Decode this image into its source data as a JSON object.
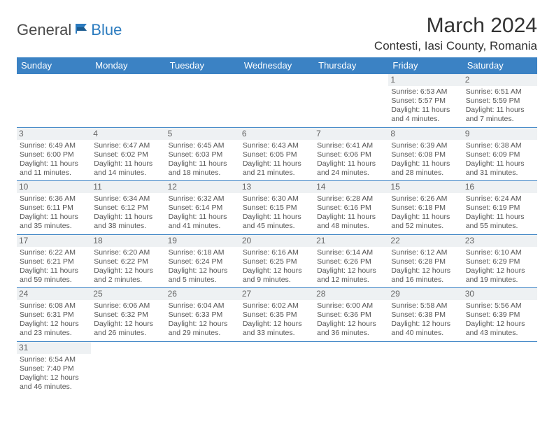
{
  "brand": {
    "part1": "General",
    "part2": "Blue"
  },
  "title": "March 2024",
  "location": "Contesti, Iasi County, Romania",
  "colors": {
    "header_bg": "#3b82c4",
    "header_text": "#ffffff",
    "border": "#3b82c4",
    "daynum_bg": "#eef1f3",
    "body_text": "#555555",
    "brand_blue": "#2b7bbf",
    "brand_gray": "#4a4a4a"
  },
  "typography": {
    "title_fontsize": 30,
    "location_fontsize": 17,
    "header_fontsize": 13,
    "cell_fontsize": 10.5
  },
  "weekdays": [
    "Sunday",
    "Monday",
    "Tuesday",
    "Wednesday",
    "Thursday",
    "Friday",
    "Saturday"
  ],
  "weeks": [
    [
      null,
      null,
      null,
      null,
      null,
      {
        "n": "1",
        "sr": "Sunrise: 6:53 AM",
        "ss": "Sunset: 5:57 PM",
        "dl1": "Daylight: 11 hours",
        "dl2": "and 4 minutes."
      },
      {
        "n": "2",
        "sr": "Sunrise: 6:51 AM",
        "ss": "Sunset: 5:59 PM",
        "dl1": "Daylight: 11 hours",
        "dl2": "and 7 minutes."
      }
    ],
    [
      {
        "n": "3",
        "sr": "Sunrise: 6:49 AM",
        "ss": "Sunset: 6:00 PM",
        "dl1": "Daylight: 11 hours",
        "dl2": "and 11 minutes."
      },
      {
        "n": "4",
        "sr": "Sunrise: 6:47 AM",
        "ss": "Sunset: 6:02 PM",
        "dl1": "Daylight: 11 hours",
        "dl2": "and 14 minutes."
      },
      {
        "n": "5",
        "sr": "Sunrise: 6:45 AM",
        "ss": "Sunset: 6:03 PM",
        "dl1": "Daylight: 11 hours",
        "dl2": "and 18 minutes."
      },
      {
        "n": "6",
        "sr": "Sunrise: 6:43 AM",
        "ss": "Sunset: 6:05 PM",
        "dl1": "Daylight: 11 hours",
        "dl2": "and 21 minutes."
      },
      {
        "n": "7",
        "sr": "Sunrise: 6:41 AM",
        "ss": "Sunset: 6:06 PM",
        "dl1": "Daylight: 11 hours",
        "dl2": "and 24 minutes."
      },
      {
        "n": "8",
        "sr": "Sunrise: 6:39 AM",
        "ss": "Sunset: 6:08 PM",
        "dl1": "Daylight: 11 hours",
        "dl2": "and 28 minutes."
      },
      {
        "n": "9",
        "sr": "Sunrise: 6:38 AM",
        "ss": "Sunset: 6:09 PM",
        "dl1": "Daylight: 11 hours",
        "dl2": "and 31 minutes."
      }
    ],
    [
      {
        "n": "10",
        "sr": "Sunrise: 6:36 AM",
        "ss": "Sunset: 6:11 PM",
        "dl1": "Daylight: 11 hours",
        "dl2": "and 35 minutes."
      },
      {
        "n": "11",
        "sr": "Sunrise: 6:34 AM",
        "ss": "Sunset: 6:12 PM",
        "dl1": "Daylight: 11 hours",
        "dl2": "and 38 minutes."
      },
      {
        "n": "12",
        "sr": "Sunrise: 6:32 AM",
        "ss": "Sunset: 6:14 PM",
        "dl1": "Daylight: 11 hours",
        "dl2": "and 41 minutes."
      },
      {
        "n": "13",
        "sr": "Sunrise: 6:30 AM",
        "ss": "Sunset: 6:15 PM",
        "dl1": "Daylight: 11 hours",
        "dl2": "and 45 minutes."
      },
      {
        "n": "14",
        "sr": "Sunrise: 6:28 AM",
        "ss": "Sunset: 6:16 PM",
        "dl1": "Daylight: 11 hours",
        "dl2": "and 48 minutes."
      },
      {
        "n": "15",
        "sr": "Sunrise: 6:26 AM",
        "ss": "Sunset: 6:18 PM",
        "dl1": "Daylight: 11 hours",
        "dl2": "and 52 minutes."
      },
      {
        "n": "16",
        "sr": "Sunrise: 6:24 AM",
        "ss": "Sunset: 6:19 PM",
        "dl1": "Daylight: 11 hours",
        "dl2": "and 55 minutes."
      }
    ],
    [
      {
        "n": "17",
        "sr": "Sunrise: 6:22 AM",
        "ss": "Sunset: 6:21 PM",
        "dl1": "Daylight: 11 hours",
        "dl2": "and 59 minutes."
      },
      {
        "n": "18",
        "sr": "Sunrise: 6:20 AM",
        "ss": "Sunset: 6:22 PM",
        "dl1": "Daylight: 12 hours",
        "dl2": "and 2 minutes."
      },
      {
        "n": "19",
        "sr": "Sunrise: 6:18 AM",
        "ss": "Sunset: 6:24 PM",
        "dl1": "Daylight: 12 hours",
        "dl2": "and 5 minutes."
      },
      {
        "n": "20",
        "sr": "Sunrise: 6:16 AM",
        "ss": "Sunset: 6:25 PM",
        "dl1": "Daylight: 12 hours",
        "dl2": "and 9 minutes."
      },
      {
        "n": "21",
        "sr": "Sunrise: 6:14 AM",
        "ss": "Sunset: 6:26 PM",
        "dl1": "Daylight: 12 hours",
        "dl2": "and 12 minutes."
      },
      {
        "n": "22",
        "sr": "Sunrise: 6:12 AM",
        "ss": "Sunset: 6:28 PM",
        "dl1": "Daylight: 12 hours",
        "dl2": "and 16 minutes."
      },
      {
        "n": "23",
        "sr": "Sunrise: 6:10 AM",
        "ss": "Sunset: 6:29 PM",
        "dl1": "Daylight: 12 hours",
        "dl2": "and 19 minutes."
      }
    ],
    [
      {
        "n": "24",
        "sr": "Sunrise: 6:08 AM",
        "ss": "Sunset: 6:31 PM",
        "dl1": "Daylight: 12 hours",
        "dl2": "and 23 minutes."
      },
      {
        "n": "25",
        "sr": "Sunrise: 6:06 AM",
        "ss": "Sunset: 6:32 PM",
        "dl1": "Daylight: 12 hours",
        "dl2": "and 26 minutes."
      },
      {
        "n": "26",
        "sr": "Sunrise: 6:04 AM",
        "ss": "Sunset: 6:33 PM",
        "dl1": "Daylight: 12 hours",
        "dl2": "and 29 minutes."
      },
      {
        "n": "27",
        "sr": "Sunrise: 6:02 AM",
        "ss": "Sunset: 6:35 PM",
        "dl1": "Daylight: 12 hours",
        "dl2": "and 33 minutes."
      },
      {
        "n": "28",
        "sr": "Sunrise: 6:00 AM",
        "ss": "Sunset: 6:36 PM",
        "dl1": "Daylight: 12 hours",
        "dl2": "and 36 minutes."
      },
      {
        "n": "29",
        "sr": "Sunrise: 5:58 AM",
        "ss": "Sunset: 6:38 PM",
        "dl1": "Daylight: 12 hours",
        "dl2": "and 40 minutes."
      },
      {
        "n": "30",
        "sr": "Sunrise: 5:56 AM",
        "ss": "Sunset: 6:39 PM",
        "dl1": "Daylight: 12 hours",
        "dl2": "and 43 minutes."
      }
    ],
    [
      {
        "n": "31",
        "sr": "Sunrise: 6:54 AM",
        "ss": "Sunset: 7:40 PM",
        "dl1": "Daylight: 12 hours",
        "dl2": "and 46 minutes."
      },
      null,
      null,
      null,
      null,
      null,
      null
    ]
  ]
}
